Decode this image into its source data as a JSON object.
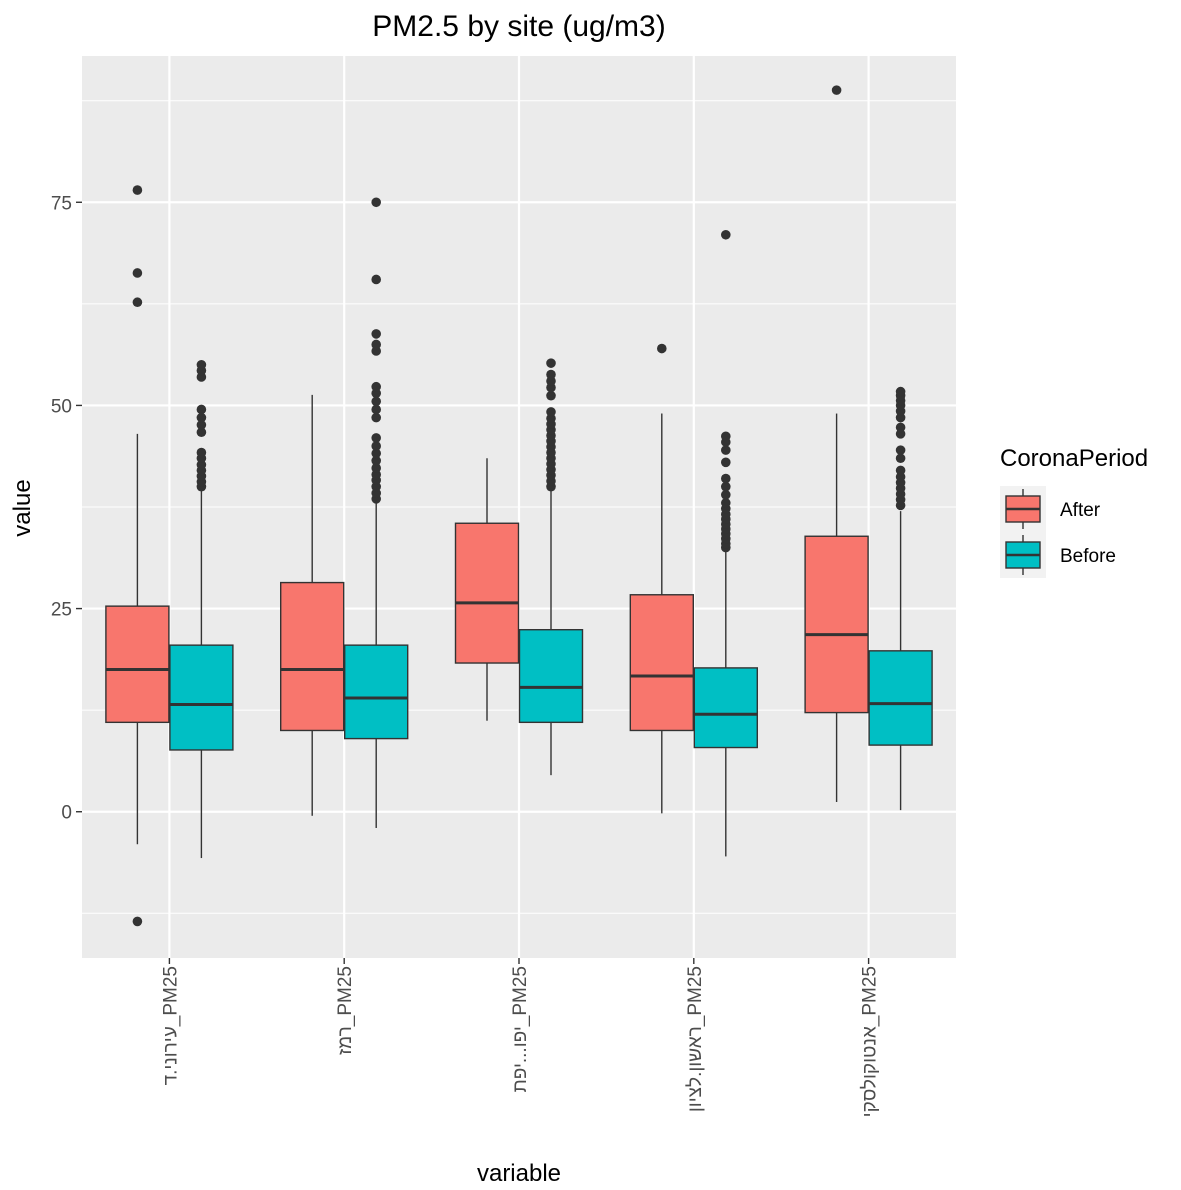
{
  "chart_data": {
    "type": "boxplot",
    "title": "PM2.5 by site (ug/m3)",
    "xlabel": "variable",
    "ylabel": "value",
    "ylim": [
      -18,
      93
    ],
    "yticks": [
      0,
      25,
      50,
      75
    ],
    "grid": true,
    "legend": {
      "title": "CoronaPeriod",
      "position": "right",
      "entries": [
        {
          "name": "After",
          "color": "#F8766D"
        },
        {
          "name": "Before",
          "color": "#00BFC4"
        }
      ]
    },
    "categories": [
      "עירוני.ד_PM25",
      "רמז_PM25",
      "יפו...יפת_PM25",
      "ראשון.לציון_PM25",
      "אנטוקולסקי_PM25"
    ],
    "series": [
      {
        "name": "After",
        "color": "#F8766D",
        "boxes": [
          {
            "whisker_low": -4,
            "q1": 11,
            "median": 17.5,
            "q3": 25.3,
            "whisker_high": 46.5,
            "outliers": [
              76.5,
              66.3,
              62.7,
              -13.5
            ]
          },
          {
            "whisker_low": -0.5,
            "q1": 10,
            "median": 17.5,
            "q3": 28.2,
            "whisker_high": 51.3,
            "outliers": []
          },
          {
            "whisker_low": 11.2,
            "q1": 18.3,
            "median": 25.7,
            "q3": 35.5,
            "whisker_high": 43.5,
            "outliers": []
          },
          {
            "whisker_low": -0.2,
            "q1": 10,
            "median": 16.7,
            "q3": 26.7,
            "whisker_high": 49,
            "outliers": [
              57
            ]
          },
          {
            "whisker_low": 1.2,
            "q1": 12.2,
            "median": 21.8,
            "q3": 33.9,
            "whisker_high": 49,
            "outliers": [
              88.8
            ]
          }
        ]
      },
      {
        "name": "Before",
        "color": "#00BFC4",
        "boxes": [
          {
            "whisker_low": -5.7,
            "q1": 7.6,
            "median": 13.2,
            "q3": 20.5,
            "whisker_high": 39.5,
            "outliers": [
              40,
              40.6,
              41.3,
              42,
              42.7,
              43.5,
              44.2,
              46.7,
              47.6,
              48.5,
              49.5,
              53.5,
              54.3,
              55
            ]
          },
          {
            "whisker_low": -2,
            "q1": 9,
            "median": 14,
            "q3": 20.5,
            "whisker_high": 38,
            "outliers": [
              38.5,
              39.2,
              40,
              40.8,
              41.5,
              42.3,
              43.2,
              44.1,
              45,
              46,
              48.5,
              49.5,
              50.5,
              51.5,
              52.3,
              56.7,
              57.5,
              58.8,
              65.5,
              75
            ]
          },
          {
            "whisker_low": 4.5,
            "q1": 11,
            "median": 15.3,
            "q3": 22.4,
            "whisker_high": 39.5,
            "outliers": [
              40,
              40.7,
              41.4,
              42.1,
              42.8,
              43.5,
              44.2,
              44.9,
              45.6,
              46.3,
              47,
              47.7,
              48.4,
              49.2,
              51.2,
              52.2,
              53,
              53.8,
              55.2
            ]
          },
          {
            "whisker_low": -5.5,
            "q1": 7.9,
            "median": 12,
            "q3": 17.7,
            "whisker_high": 32,
            "outliers": [
              32.5,
              33,
              33.6,
              34.2,
              34.8,
              35.4,
              36,
              36.6,
              37.3,
              38,
              39,
              40,
              41,
              43,
              44.5,
              45.5,
              46.2,
              71
            ]
          },
          {
            "whisker_low": 0.2,
            "q1": 8.2,
            "median": 13.3,
            "q3": 19.8,
            "whisker_high": 37,
            "outliers": [
              37.7,
              38.4,
              39.1,
              39.8,
              40.5,
              41.2,
              42,
              43.5,
              44.5,
              46.5,
              47.3,
              48.5,
              49.3,
              50,
              50.6,
              51.2,
              51.7
            ]
          }
        ]
      }
    ]
  }
}
